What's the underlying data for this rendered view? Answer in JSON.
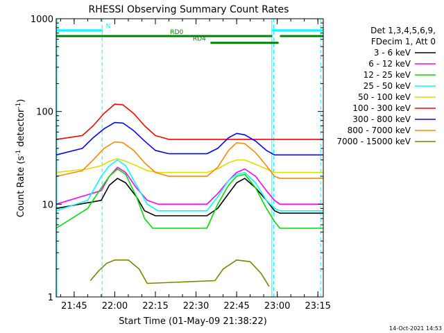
{
  "footer_stamp": "14-Oct-2021 14:53",
  "chart_data": {
    "type": "line",
    "title": "RHESSI Observing Summary Count Rates",
    "xlabel": "Start Time (01-May-09 21:38:22)",
    "ylabel_main": "Count Rate (s",
    "ylabel_sup1": "-1",
    "ylabel_mid": " detector",
    "ylabel_sup2": "-1",
    "ylabel_end": ")",
    "yscale": "log",
    "ylim": [
      1,
      1000
    ],
    "xlim": [
      "21:38:22",
      "23:17:00"
    ],
    "y_ticks": [
      {
        "value": 1,
        "label": "1"
      },
      {
        "value": 10,
        "label": "10"
      },
      {
        "value": 100,
        "label": "100"
      },
      {
        "value": 1000,
        "label": "1000"
      }
    ],
    "x_ticks": [
      {
        "value": "21:45",
        "label": "21:45"
      },
      {
        "value": "22:00",
        "label": "22:00"
      },
      {
        "value": "22:15",
        "label": "22:15"
      },
      {
        "value": "22:30",
        "label": "22:30"
      },
      {
        "value": "22:45",
        "label": "22:45"
      },
      {
        "value": "23:00",
        "label": "23:00"
      },
      {
        "value": "23:15",
        "label": "23:15"
      }
    ],
    "legend": {
      "placement": "right",
      "header": [
        "Det 1,3,4,5,6,9,",
        "FDecim 1, Att 0"
      ],
      "entries": [
        {
          "label": "3 - 6 keV",
          "color": "#000000"
        },
        {
          "label": "6 - 12 keV",
          "color": "#ff00ff"
        },
        {
          "label": "12 - 25 keV",
          "color": "#00dd00"
        },
        {
          "label": "25 - 50 keV",
          "color": "#00ffff"
        },
        {
          "label": "50 - 100 keV",
          "color": "#dddd00"
        },
        {
          "label": "100 - 300 keV",
          "color": "#ff0000"
        },
        {
          "label": "300 - 800 keV",
          "color": "#0000ff"
        },
        {
          "label": "800 - 7000 keV",
          "color": "#ff8800"
        },
        {
          "label": "7000 - 15000 keV",
          "color": "#808000"
        }
      ]
    },
    "flags": [
      {
        "label": "N",
        "color": "#00ffff",
        "value": 750,
        "segments": [
          [
            "21:38:22",
            "21:55:30"
          ],
          [
            "22:58:10",
            "23:17:00"
          ]
        ]
      },
      {
        "label": "RD0",
        "color": "#008000",
        "value": 650,
        "segments": [
          [
            "21:38:22",
            "22:58:10"
          ],
          [
            "23:01:00",
            "23:17:00"
          ]
        ]
      },
      {
        "label": "RD4",
        "color": "#008000",
        "value": 550,
        "segments": [
          [
            "22:35:20",
            "23:00:30"
          ]
        ]
      }
    ],
    "night_boundaries": [
      "21:55:20",
      "22:58:40",
      "23:16:00"
    ],
    "saa_boundaries": [
      "22:58:00"
    ],
    "series": [
      {
        "name": "3 - 6 keV",
        "color": "#000000",
        "points": [
          [
            "21:38:22",
            9.0
          ],
          [
            "21:55:00",
            11
          ],
          [
            "21:58:00",
            16
          ],
          [
            "22:01:00",
            19
          ],
          [
            "22:04:00",
            17
          ],
          [
            "22:08:00",
            12
          ],
          [
            "22:11:00",
            8.5
          ],
          [
            "22:15:00",
            7.5
          ],
          [
            "22:34:00",
            7.5
          ],
          [
            "22:38:00",
            9
          ],
          [
            "22:42:00",
            13
          ],
          [
            "22:45:00",
            17
          ],
          [
            "22:48:00",
            19
          ],
          [
            "22:52:00",
            15
          ],
          [
            "22:56:00",
            11
          ],
          [
            "22:59:00",
            8.5
          ],
          [
            "23:01:00",
            8.0
          ],
          [
            "23:17:00",
            8.0
          ]
        ]
      },
      {
        "name": "6 - 12 keV",
        "color": "#ff00ff",
        "points": [
          [
            "21:38:22",
            10
          ],
          [
            "21:55:00",
            14
          ],
          [
            "21:58:00",
            20
          ],
          [
            "22:01:00",
            25
          ],
          [
            "22:04:00",
            22
          ],
          [
            "22:08:00",
            15
          ],
          [
            "22:12:00",
            11
          ],
          [
            "22:16:00",
            10
          ],
          [
            "22:34:00",
            10
          ],
          [
            "22:38:00",
            13
          ],
          [
            "22:42:00",
            18
          ],
          [
            "22:45:00",
            22
          ],
          [
            "22:48:00",
            24
          ],
          [
            "22:52:00",
            20
          ],
          [
            "22:56:00",
            14
          ],
          [
            "22:59:00",
            11
          ],
          [
            "23:01:00",
            10
          ],
          [
            "23:17:00",
            10
          ]
        ]
      },
      {
        "name": "12 - 25 keV",
        "color": "#00dd00",
        "points": [
          [
            "21:38:22",
            5.5
          ],
          [
            "21:50:00",
            9
          ],
          [
            "21:55:00",
            15
          ],
          [
            "21:58:00",
            20
          ],
          [
            "22:01:00",
            24
          ],
          [
            "22:04:00",
            21
          ],
          [
            "22:08:00",
            12
          ],
          [
            "22:11:00",
            7
          ],
          [
            "22:14:00",
            5.5
          ],
          [
            "22:34:00",
            5.5
          ],
          [
            "22:38:00",
            10
          ],
          [
            "22:42:00",
            16
          ],
          [
            "22:45:00",
            20
          ],
          [
            "22:48:00",
            21
          ],
          [
            "22:52:00",
            15
          ],
          [
            "22:56:00",
            9
          ],
          [
            "22:59:00",
            6.5
          ],
          [
            "23:01:00",
            5.5
          ],
          [
            "23:17:00",
            5.5
          ]
        ]
      },
      {
        "name": "25 - 50 keV",
        "color": "#00ffff",
        "points": [
          [
            "21:38:22",
            8.5
          ],
          [
            "21:50:00",
            11
          ],
          [
            "21:55:00",
            20
          ],
          [
            "21:58:00",
            26
          ],
          [
            "22:01:00",
            30
          ],
          [
            "22:04:00",
            26
          ],
          [
            "22:08:00",
            16
          ],
          [
            "22:12:00",
            10
          ],
          [
            "22:16:00",
            8.5
          ],
          [
            "22:34:00",
            8.5
          ],
          [
            "22:38:00",
            12
          ],
          [
            "22:42:00",
            18
          ],
          [
            "22:45:00",
            21
          ],
          [
            "22:48:00",
            22
          ],
          [
            "22:52:00",
            17
          ],
          [
            "22:56:00",
            11
          ],
          [
            "22:59:00",
            9
          ],
          [
            "23:01:00",
            8.5
          ],
          [
            "23:17:00",
            8.5
          ]
        ]
      },
      {
        "name": "50 - 100 keV",
        "color": "#dddd00",
        "points": [
          [
            "21:38:22",
            22
          ],
          [
            "21:50:00",
            24
          ],
          [
            "21:55:00",
            26
          ],
          [
            "21:58:00",
            29
          ],
          [
            "22:01:00",
            31
          ],
          [
            "22:04:00",
            29
          ],
          [
            "22:08:00",
            26
          ],
          [
            "22:12:00",
            23
          ],
          [
            "22:16:00",
            22
          ],
          [
            "22:34:00",
            22
          ],
          [
            "22:38:00",
            24
          ],
          [
            "22:42:00",
            28
          ],
          [
            "22:45:00",
            30
          ],
          [
            "22:48:00",
            30
          ],
          [
            "22:52:00",
            27
          ],
          [
            "22:56:00",
            24
          ],
          [
            "22:59:00",
            22
          ],
          [
            "23:01:00",
            22
          ],
          [
            "23:17:00",
            22
          ]
        ]
      },
      {
        "name": "100 - 300 keV",
        "color": "#ff0000",
        "points": [
          [
            "21:38:22",
            50
          ],
          [
            "21:48:00",
            55
          ],
          [
            "21:52:00",
            70
          ],
          [
            "21:56:00",
            95
          ],
          [
            "22:00:00",
            120
          ],
          [
            "22:03:00",
            118
          ],
          [
            "22:07:00",
            95
          ],
          [
            "22:11:00",
            70
          ],
          [
            "22:15:00",
            55
          ],
          [
            "22:20:00",
            50
          ],
          [
            "22:34:00",
            50
          ],
          [
            "23:01:00",
            50
          ],
          [
            "23:17:00",
            50
          ]
        ]
      },
      {
        "name": "300 - 800 keV",
        "color": "#0000ff",
        "points": [
          [
            "21:38:22",
            34
          ],
          [
            "21:48:00",
            40
          ],
          [
            "21:52:00",
            52
          ],
          [
            "21:56:00",
            65
          ],
          [
            "22:00:00",
            76
          ],
          [
            "22:03:00",
            75
          ],
          [
            "22:07:00",
            62
          ],
          [
            "22:11:00",
            48
          ],
          [
            "22:15:00",
            38
          ],
          [
            "22:20:00",
            35
          ],
          [
            "22:34:00",
            35
          ],
          [
            "22:38:00",
            40
          ],
          [
            "22:42:00",
            52
          ],
          [
            "22:45:00",
            58
          ],
          [
            "22:48:00",
            56
          ],
          [
            "22:52:00",
            48
          ],
          [
            "22:56:00",
            38
          ],
          [
            "22:59:00",
            34
          ],
          [
            "23:01:00",
            34
          ],
          [
            "23:17:00",
            34
          ]
        ]
      },
      {
        "name": "800 - 7000 keV",
        "color": "#ff8800",
        "points": [
          [
            "21:38:22",
            20
          ],
          [
            "21:48:00",
            23
          ],
          [
            "21:52:00",
            30
          ],
          [
            "21:56:00",
            40
          ],
          [
            "22:00:00",
            47
          ],
          [
            "22:03:00",
            46
          ],
          [
            "22:07:00",
            38
          ],
          [
            "22:11:00",
            28
          ],
          [
            "22:15:00",
            22
          ],
          [
            "22:20:00",
            20
          ],
          [
            "22:34:00",
            20
          ],
          [
            "22:38:00",
            25
          ],
          [
            "22:42:00",
            38
          ],
          [
            "22:45:00",
            46
          ],
          [
            "22:48:00",
            45
          ],
          [
            "22:52:00",
            36
          ],
          [
            "22:56:00",
            26
          ],
          [
            "22:59:00",
            20
          ],
          [
            "23:01:00",
            19
          ],
          [
            "23:17:00",
            19
          ]
        ]
      },
      {
        "name": "7000 - 15000 keV",
        "color": "#808000",
        "points": [
          [
            "21:51:00",
            1.5
          ],
          [
            "21:54:00",
            1.9
          ],
          [
            "21:57:00",
            2.3
          ],
          [
            "22:00:00",
            2.5
          ],
          [
            "22:05:00",
            2.5
          ],
          [
            "22:09:00",
            2.0
          ],
          [
            "22:12:00",
            1.4
          ],
          [
            "22:37:00",
            1.5
          ],
          [
            "22:40:00",
            2.0
          ],
          [
            "22:45:00",
            2.5
          ],
          [
            "22:50:00",
            2.4
          ],
          [
            "22:54:00",
            1.8
          ],
          [
            "22:57:00",
            1.3
          ]
        ]
      }
    ]
  }
}
